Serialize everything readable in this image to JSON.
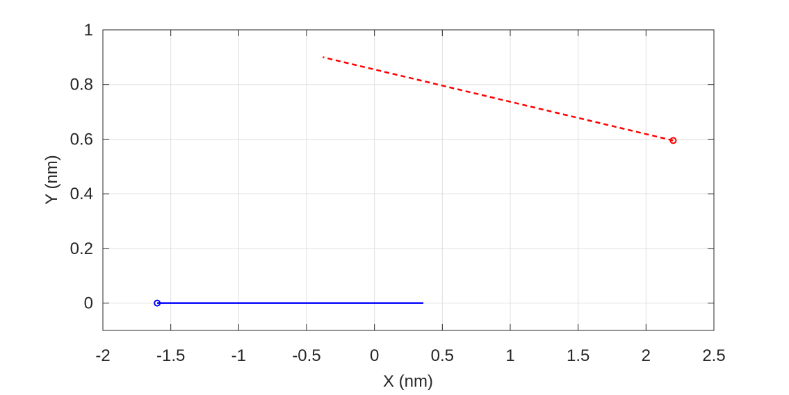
{
  "chart_data": {
    "type": "line",
    "xlabel": "X (nm)",
    "ylabel": "Y (nm)",
    "xlim": [
      -2,
      2.5
    ],
    "ylim": [
      -0.1,
      1
    ],
    "xticks": [
      -2,
      -1.5,
      -1,
      -0.5,
      0,
      0.5,
      1,
      1.5,
      2,
      2.5
    ],
    "yticks": [
      0,
      0.2,
      0.4,
      0.6,
      0.8,
      1
    ],
    "xtick_labels": [
      "-2",
      "-1.5",
      "-1",
      "-0.5",
      "0",
      "0.5",
      "1",
      "1.5",
      "2",
      "2.5"
    ],
    "ytick_labels": [
      "0",
      "0.2",
      "0.4",
      "0.6",
      "0.8",
      "1"
    ],
    "grid": true,
    "box": true,
    "series": [
      {
        "color": "#0000ff",
        "line_style": "solid",
        "x": [
          -1.6,
          0.36
        ],
        "y": [
          0,
          0
        ],
        "start_marker": "circle"
      },
      {
        "color": "#ff0000",
        "line_style": "dashed",
        "x": [
          2.2,
          -0.38
        ],
        "y": [
          0.595,
          0.9
        ],
        "start_marker": "circle"
      }
    ]
  }
}
